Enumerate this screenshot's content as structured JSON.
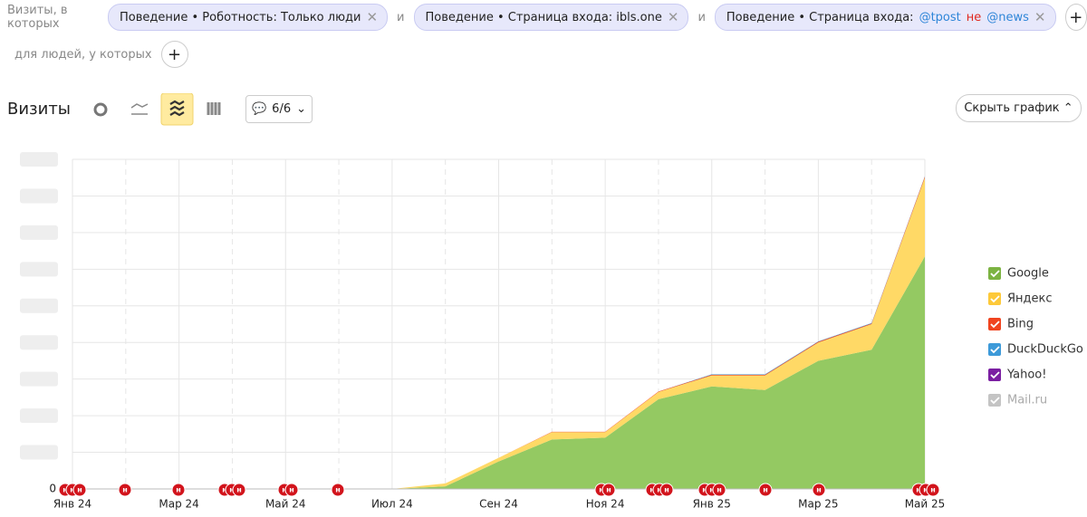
{
  "filters": {
    "lead": "Визиты, в которых",
    "joiner": "и",
    "conditions": [
      {
        "text": "Поведение • Роботность: Только люди"
      },
      {
        "text": "Поведение • Страница входа: ibls.one"
      },
      {
        "prefix": "Поведение • Страница входа:",
        "include": "@tpost",
        "negation": "не",
        "exclude": "@news"
      }
    ],
    "people_lead": "для людей, у которых"
  },
  "toolbar": {
    "title": "Визиты",
    "annotations_count": "6/6",
    "hide_button": "Скрыть график"
  },
  "chart_data": {
    "type": "stacked_area",
    "categories": [
      "Янв 24",
      null,
      "Мар 24",
      null,
      "Май 24",
      null,
      "Июл 24",
      null,
      "Сен 24",
      null,
      "Ноя 24",
      null,
      "Янв 25",
      null,
      "Мар 25",
      null,
      "Май 25"
    ],
    "series": [
      {
        "name": "Google",
        "color": "#94c962",
        "check": "#7cb342",
        "values": [
          0,
          0,
          0,
          0,
          0,
          0,
          0,
          0.07,
          0.75,
          1.35,
          1.4,
          2.45,
          2.8,
          2.7,
          3.5,
          3.8,
          6.35
        ]
      },
      {
        "name": "Яндекс",
        "color": "#ffd966",
        "check": "#fdc93a",
        "values": [
          0,
          0,
          0,
          0,
          0,
          0,
          0,
          0.08,
          0.1,
          0.2,
          0.15,
          0.2,
          0.3,
          0.4,
          0.5,
          0.7,
          2.15
        ]
      },
      {
        "name": "Bing",
        "color": "#f0441f",
        "check": "#f0441f",
        "values": [
          0,
          0,
          0,
          0,
          0,
          0,
          0,
          0,
          0,
          0.01,
          0.01,
          0.01,
          0.02,
          0.02,
          0.02,
          0.02,
          0.03
        ]
      },
      {
        "name": "DuckDuckGo",
        "color": "#3d9ad9",
        "check": "#3d9ad9",
        "values": [
          0,
          0,
          0,
          0,
          0,
          0,
          0,
          0,
          0,
          0,
          0,
          0,
          0.01,
          0.01,
          0.01,
          0.01,
          0.01
        ]
      },
      {
        "name": "Yahoo!",
        "color": "#7b1fa2",
        "check": "#7b1fa2",
        "values": [
          0,
          0,
          0,
          0,
          0,
          0,
          0,
          0,
          0,
          0,
          0,
          0,
          0,
          0,
          0,
          0,
          0
        ]
      },
      {
        "name": "Mail.ru",
        "color": "#c4c4c4",
        "check": "#c4c4c4",
        "hidden": true
      }
    ],
    "ylim": [
      0,
      9
    ],
    "yticks": [
      0
    ],
    "grid_lines": [
      1,
      2,
      3,
      4,
      5,
      6,
      7,
      8,
      9
    ],
    "annotation_marker": "н",
    "legend": "right"
  }
}
